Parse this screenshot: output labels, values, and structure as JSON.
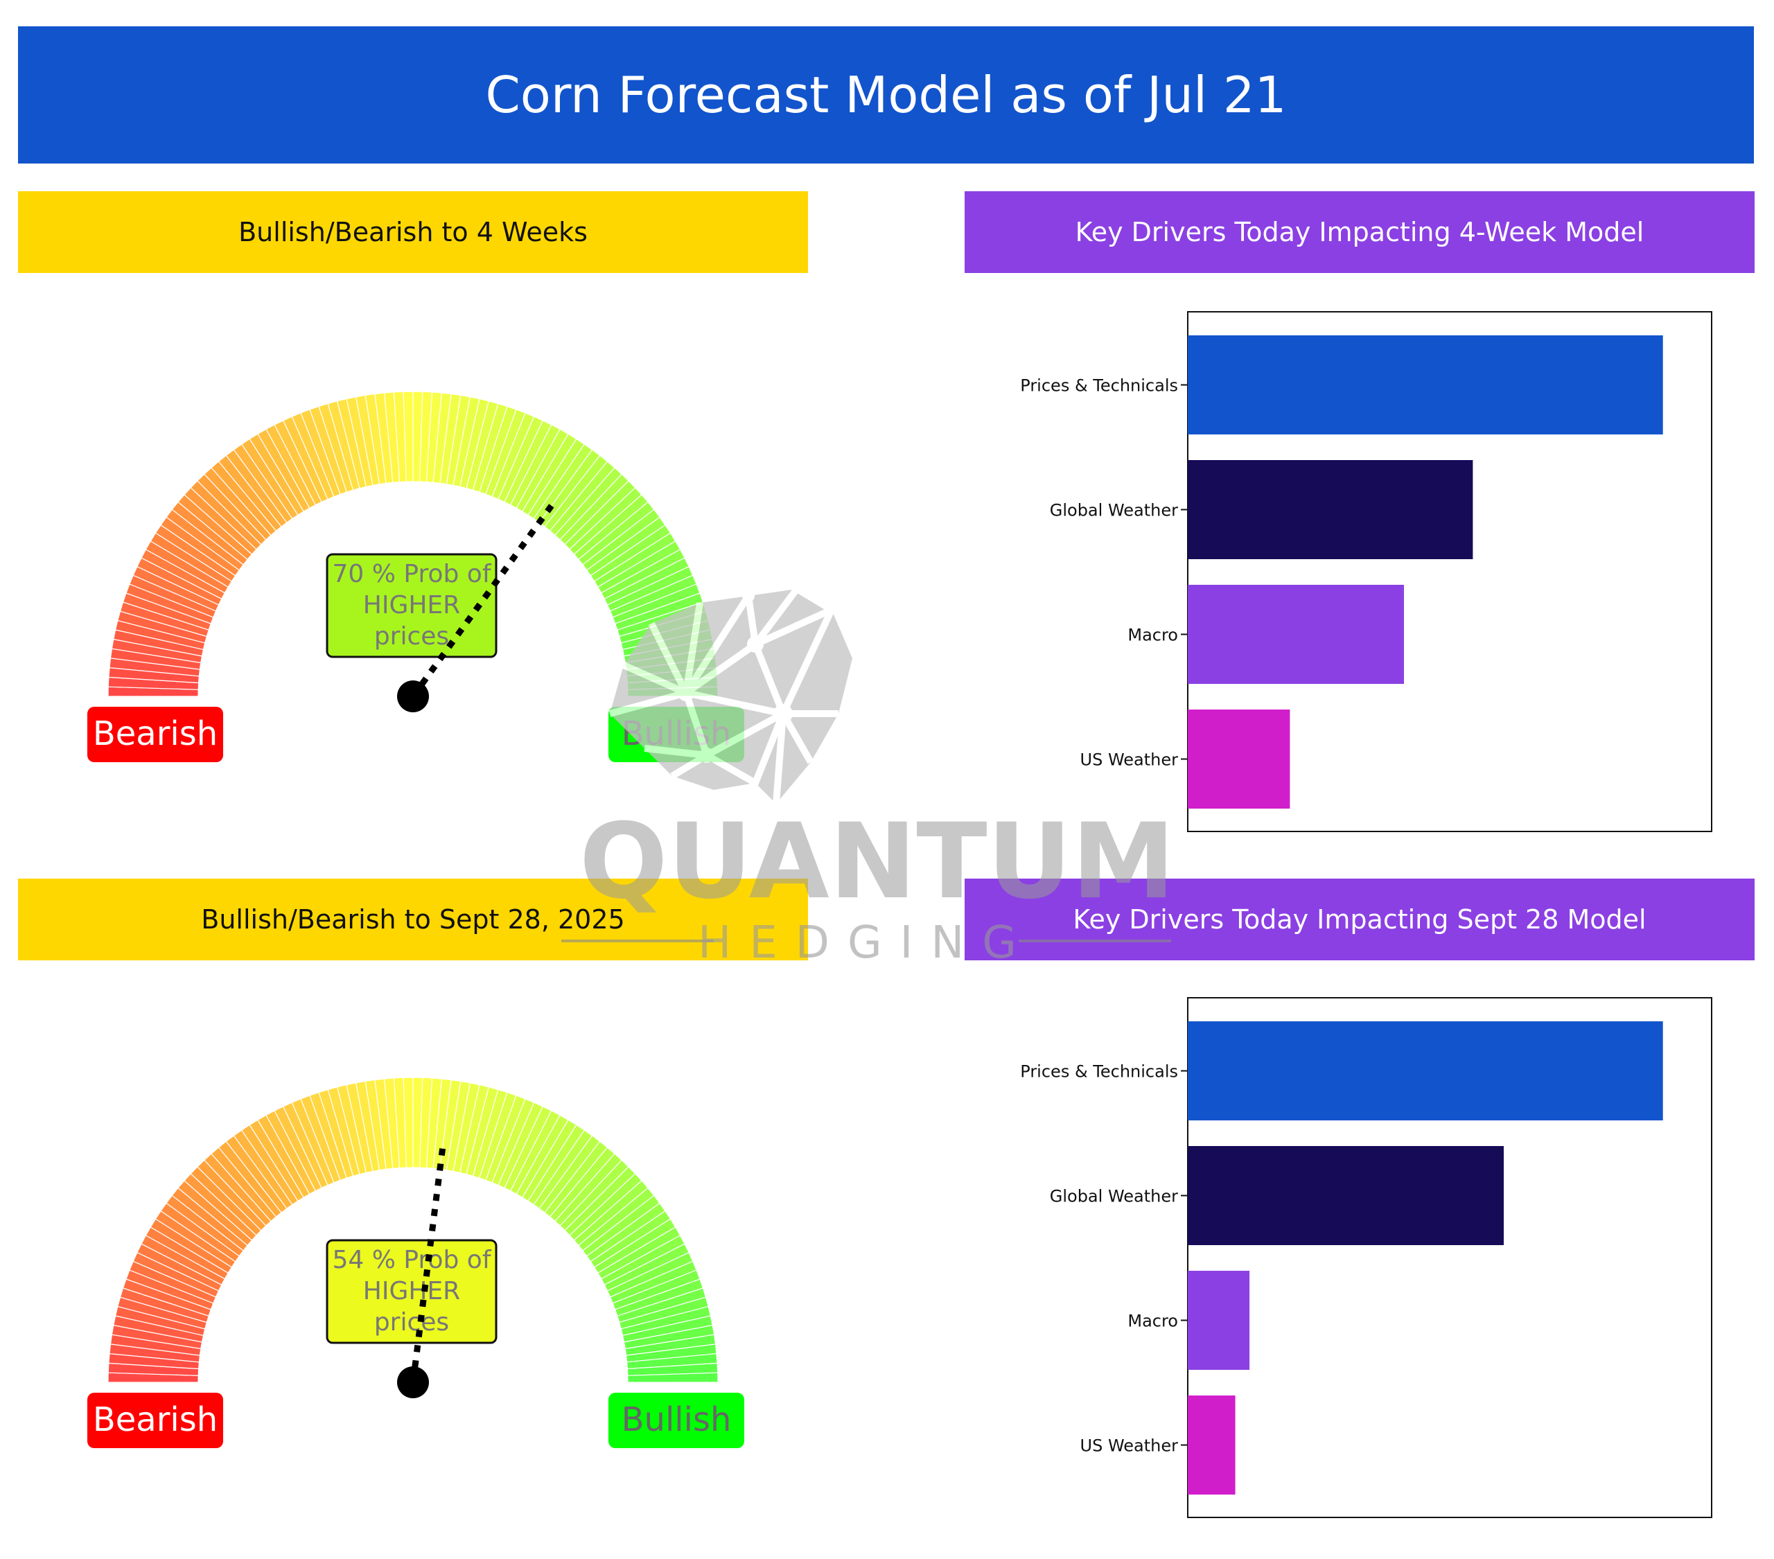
{
  "banner": {
    "title": "Corn Forecast Model as of Jul 21"
  },
  "headers": {
    "gauge_4w": "Bullish/Bearish to 4 Weeks",
    "drivers_4w": "Key Drivers Today Impacting 4-Week Model",
    "gauge_sept": "Bullish/Bearish to Sept 28, 2025",
    "drivers_sept": "Key Drivers Today Impacting Sept 28 Model"
  },
  "watermark": {
    "line1": "QUANTUM",
    "line2": "HEDGING"
  },
  "colors": {
    "banner": "#1254cc",
    "yellow_header": "#ffd700",
    "purple_header": "#8b40e3",
    "bearish_badge": "#ff0000",
    "bullish_badge": "#00ff00"
  },
  "chart_data": [
    {
      "type": "gauge",
      "probability": 70,
      "label": [
        "70 % Prob of",
        "HIGHER",
        "prices"
      ],
      "left_label": "Bearish",
      "right_label": "Bullish",
      "box_color": "#a8f51e",
      "range": [
        0,
        100
      ]
    },
    {
      "type": "bar",
      "orientation": "horizontal",
      "categories": [
        "Prices & Technicals",
        "Global Weather",
        "Macro",
        "US Weather"
      ],
      "values": [
        100,
        60,
        45.5,
        21.5
      ],
      "colors": [
        "#1254cc",
        "#160b57",
        "#8b40e3",
        "#d01ecb"
      ],
      "xlim": [
        0,
        105
      ],
      "grid": false
    },
    {
      "type": "gauge",
      "probability": 54,
      "label": [
        "54 % Prob of",
        "HIGHER",
        "prices"
      ],
      "left_label": "Bearish",
      "right_label": "Bullish",
      "box_color": "#ecfa1e",
      "range": [
        0,
        100
      ]
    },
    {
      "type": "bar",
      "orientation": "horizontal",
      "categories": [
        "Prices & Technicals",
        "Global Weather",
        "Macro",
        "US Weather"
      ],
      "values": [
        100,
        66.5,
        13,
        10
      ],
      "colors": [
        "#1254cc",
        "#160b57",
        "#8b40e3",
        "#d01ecb"
      ],
      "xlim": [
        0,
        105
      ],
      "grid": false
    }
  ]
}
